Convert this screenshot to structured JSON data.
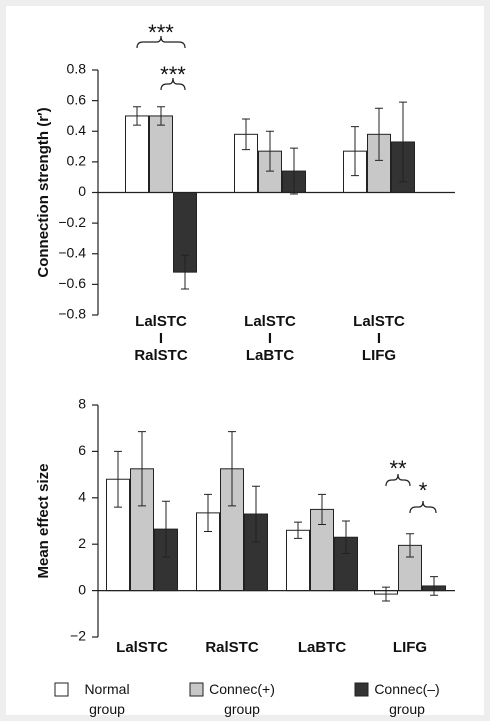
{
  "chart_data": [
    {
      "type": "bar",
      "ylabel": "Connection strength (r′)",
      "categories": [
        "LalSTC\nI\nRalSTC",
        "LalSTC\nI\nLaBTC",
        "LalSTC\nI\nLIFG"
      ],
      "series": [
        {
          "values": [
            0.5,
            0.38,
            0.27
          ],
          "errors": [
            0.06,
            0.1,
            0.16
          ]
        },
        {
          "values": [
            0.5,
            0.27,
            0.38
          ],
          "errors": [
            0.06,
            0.13,
            0.17
          ]
        },
        {
          "values": [
            -0.52,
            0.14,
            0.33
          ],
          "errors": [
            0.11,
            0.15,
            0.26
          ]
        }
      ],
      "ylim": [
        -0.8,
        0.8
      ],
      "yticks": [
        {
          "value": -0.8,
          "label": "−0.8"
        },
        {
          "value": -0.6,
          "label": "−0.6"
        },
        {
          "value": -0.4,
          "label": "−0.4"
        },
        {
          "value": -0.2,
          "label": "−0.2"
        },
        0,
        0.2,
        0.4,
        0.6,
        0.8
      ],
      "annotations": [
        "***",
        "***"
      ]
    },
    {
      "type": "bar",
      "ylabel": "Mean effect size",
      "categories": [
        "LalSTC",
        "RalSTC",
        "LaBTC",
        "LIFG"
      ],
      "series": [
        {
          "values": [
            4.8,
            3.35,
            2.6,
            -0.15
          ],
          "errors": [
            1.2,
            0.8,
            0.35,
            0.3
          ]
        },
        {
          "values": [
            5.25,
            5.25,
            3.5,
            1.95
          ],
          "errors": [
            1.6,
            1.6,
            0.65,
            0.5
          ]
        },
        {
          "values": [
            2.65,
            3.3,
            2.3,
            0.2
          ],
          "errors": [
            1.2,
            1.2,
            0.7,
            0.4
          ]
        }
      ],
      "ylim": [
        -2,
        8
      ],
      "yticks": [
        {
          "value": -2,
          "label": "−2"
        },
        0,
        2,
        4,
        6,
        8
      ],
      "annotations": [
        "**",
        "*"
      ]
    }
  ],
  "legend": [
    {
      "name": "Normal\ngroup",
      "color": "#ffffff"
    },
    {
      "name": "Connec(+)\ngroup",
      "color": "#c8c8c8"
    },
    {
      "name": "Connec(–)\ngroup",
      "color": "#333333"
    }
  ]
}
